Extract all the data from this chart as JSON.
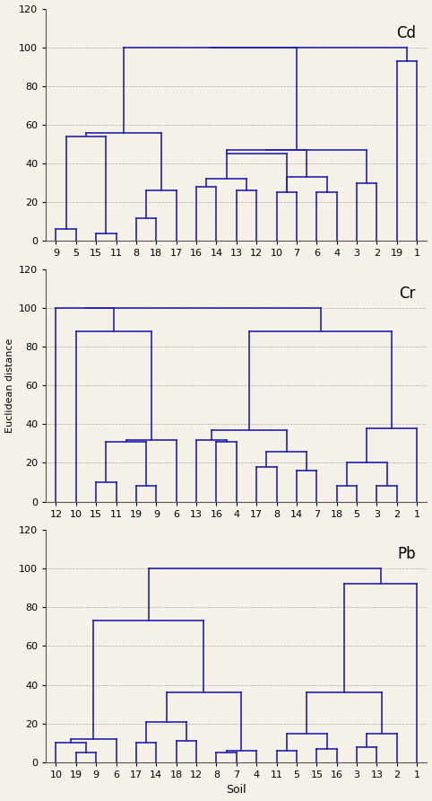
{
  "background_color": "#f5f0e8",
  "line_color": "#2222aa",
  "line_width": 1.2,
  "ylim": [
    0,
    120
  ],
  "yticks": [
    0,
    20,
    40,
    60,
    80,
    100,
    120
  ],
  "grid_color": "#aaaaaa",
  "title_fontsize": 12,
  "tick_fontsize": 8,
  "ylabel": "Euclidean distance",
  "xlabel": "Soil",
  "plots": [
    {
      "title": "Cd",
      "labels": [
        "9",
        "5",
        "15",
        "11",
        "8",
        "18",
        "17",
        "16",
        "14",
        "13",
        "12",
        "10",
        "7",
        "6",
        "4",
        "3",
        "2",
        "19",
        "1"
      ]
    },
    {
      "title": "Cr",
      "labels": [
        "12",
        "10",
        "15",
        "11",
        "19",
        "9",
        "6",
        "13",
        "16",
        "4",
        "17",
        "8",
        "14",
        "7",
        "18",
        "5",
        "3",
        "2",
        "1"
      ]
    },
    {
      "title": "Pb",
      "labels": [
        "10",
        "19",
        "9",
        "6",
        "17",
        "14",
        "18",
        "12",
        "8",
        "7",
        "4",
        "11",
        "5",
        "15",
        "16",
        "3",
        "13",
        "2",
        "1"
      ]
    }
  ]
}
